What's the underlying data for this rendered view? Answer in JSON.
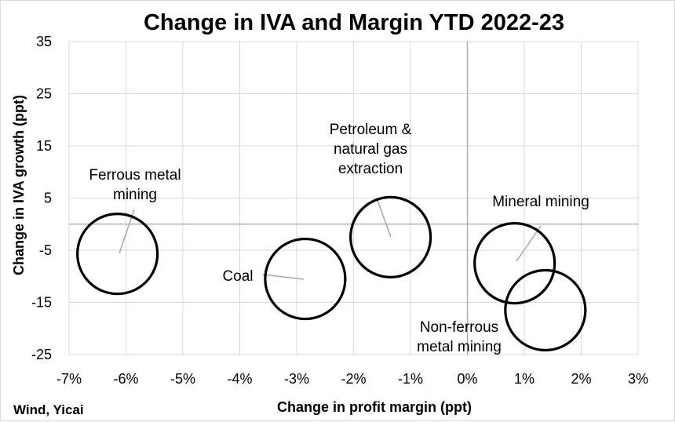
{
  "chart_data": {
    "type": "scatter",
    "title": "Change in IVA and Margin YTD 2022-23",
    "xlabel": "Change in profit margin (ppt)",
    "ylabel": "Change in IVA growth (ppt)",
    "source": "Wind, Yicai",
    "xlim": [
      -7,
      3
    ],
    "ylim": [
      -25,
      35
    ],
    "x_ticks": [
      -7,
      -6,
      -5,
      -4,
      -3,
      -2,
      -1,
      0,
      1,
      2,
      3
    ],
    "x_tick_labels": [
      "-7%",
      "-6%",
      "-5%",
      "-4%",
      "-3%",
      "-2%",
      "-1%",
      "0%",
      "1%",
      "2%",
      "3%"
    ],
    "y_ticks": [
      35,
      25,
      15,
      5,
      -5,
      -15,
      -25
    ],
    "y_tick_labels": [
      "35",
      "25",
      "15",
      "5",
      "-5",
      "-15",
      "-25"
    ],
    "grid": true,
    "legend": "none",
    "marker": "hollow circle",
    "points": [
      {
        "label": "Ferrous metal mining",
        "label_lines": [
          "Ferrous metal",
          "mining"
        ],
        "x": -6.15,
        "y": -5.7
      },
      {
        "label": "Coal",
        "label_lines": [
          "Coal"
        ],
        "x": -2.85,
        "y": -10.5
      },
      {
        "label": "Petroleum & natural gas extraction",
        "label_lines": [
          "Petroleum &",
          "natural gas",
          "extraction"
        ],
        "x": -1.35,
        "y": -2.5
      },
      {
        "label": "Mineral mining",
        "label_lines": [
          "Mineral mining"
        ],
        "x": 0.83,
        "y": -7.5
      },
      {
        "label": "Non-ferrous metal mining",
        "label_lines": [
          "Non-ferrous",
          "metal mining"
        ],
        "x": 1.37,
        "y": -16.5
      }
    ]
  }
}
